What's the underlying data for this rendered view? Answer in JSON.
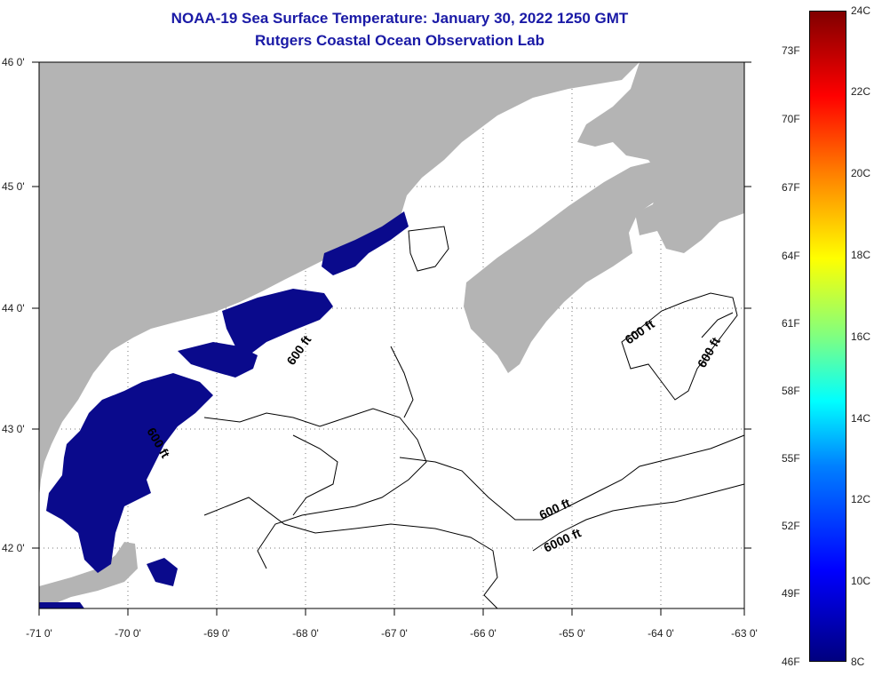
{
  "title": {
    "line1": "NOAA-19 Sea Surface Temperature:  January 30, 2022 1250 GMT",
    "line2": "Rutgers Coastal Ocean Observation Lab"
  },
  "axes": {
    "lat_labels": [
      "46 0'",
      "45 0'",
      "44 0'",
      "43 0'",
      "42 0'"
    ],
    "lon_labels": [
      "-71 0'",
      "-70 0'",
      "-69 0'",
      "-68 0'",
      "-67 0'",
      "-66 0'",
      "-65 0'",
      "-64 0'",
      "-63 0'"
    ]
  },
  "contour_labels": {
    "a": "600 ft",
    "b": "600 ft",
    "c": "600 ft",
    "d": "600 ft",
    "e": "600 ft",
    "f": "6000 ft"
  },
  "colorbar": {
    "celsius_labels": [
      "24C",
      "22C",
      "20C",
      "18C",
      "16C",
      "14C",
      "12C",
      "10C",
      "8C"
    ],
    "fahrenheit_labels": [
      "73F",
      "70F",
      "67F",
      "64F",
      "61F",
      "58F",
      "55F",
      "52F",
      "49F",
      "46F"
    ],
    "range_c": [
      8,
      24
    ]
  },
  "colors": {
    "land": "#b4b4b4",
    "water_cold": "#0a0a8c",
    "title": "#1a1aa6"
  }
}
